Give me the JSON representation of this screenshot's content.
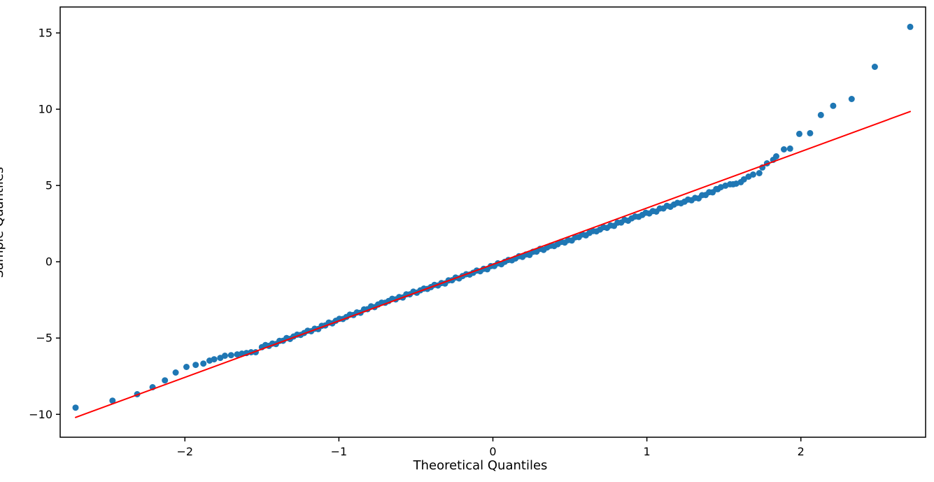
{
  "figure": {
    "xlabel": "Theoretical Quantiles",
    "ylabel": "Sample Quantiles"
  },
  "chart_data": {
    "type": "scatter",
    "title": "",
    "xlabel": "Theoretical Quantiles",
    "ylabel": "Sample Quantiles",
    "xlim": [
      -2.81,
      2.81
    ],
    "ylim": [
      -11.5,
      16.7
    ],
    "xticks": [
      -2,
      -1,
      0,
      1,
      2
    ],
    "yticks": [
      -10,
      -5,
      0,
      5,
      10,
      15
    ],
    "grid": false,
    "legend": null,
    "background_color": "#ffffff",
    "point_color": "#1f77b4",
    "point_radius": 4.5,
    "reference_line": {
      "color": "#ff0000",
      "width": 2,
      "x1": -2.71,
      "y1": -10.2,
      "x2": 2.71,
      "y2": 9.85
    },
    "outlier_points": [
      [
        -2.71,
        -9.56
      ],
      [
        -2.47,
        -9.1
      ],
      [
        -2.31,
        -8.68
      ],
      [
        -2.21,
        -8.22
      ],
      [
        -2.13,
        -7.77
      ],
      [
        -2.06,
        -7.26
      ],
      [
        -1.99,
        -6.89
      ],
      [
        -1.93,
        -6.76
      ],
      [
        -1.88,
        -6.67
      ],
      [
        -1.84,
        -6.48
      ],
      [
        -1.81,
        -6.39
      ],
      [
        -1.77,
        -6.3
      ],
      [
        -1.74,
        -6.16
      ],
      [
        -1.7,
        -6.12
      ],
      [
        -1.66,
        -6.07
      ],
      [
        -1.63,
        -6.02
      ],
      [
        -1.6,
        -5.98
      ],
      [
        -1.57,
        -5.93
      ],
      [
        -1.54,
        -5.93
      ],
      [
        1.46,
        4.76
      ],
      [
        1.48,
        4.89
      ],
      [
        1.51,
        4.99
      ],
      [
        1.54,
        5.08
      ],
      [
        1.56,
        5.08
      ],
      [
        1.58,
        5.12
      ],
      [
        1.61,
        5.22
      ],
      [
        1.63,
        5.4
      ],
      [
        1.66,
        5.58
      ],
      [
        1.69,
        5.72
      ],
      [
        1.73,
        5.81
      ],
      [
        1.75,
        6.18
      ],
      [
        1.78,
        6.45
      ],
      [
        1.82,
        6.68
      ],
      [
        1.84,
        6.91
      ],
      [
        1.89,
        7.37
      ],
      [
        1.93,
        7.42
      ],
      [
        1.99,
        8.38
      ],
      [
        2.06,
        8.43
      ],
      [
        2.13,
        9.62
      ],
      [
        2.21,
        10.22
      ],
      [
        2.33,
        10.67
      ],
      [
        2.48,
        12.78
      ],
      [
        2.71,
        15.4
      ]
    ],
    "dense_band": {
      "description": "Dense run of overlapping sample points between the tails; v = slope*t + intercept + offset(t) + jitter",
      "t_start": -1.5,
      "t_end": 1.45,
      "n": 130,
      "slope": 3.7,
      "intercept": -0.2,
      "offset_anchors": [
        [
          -1.5,
          0.15
        ],
        [
          -1.42,
          0.1
        ],
        [
          -1.3,
          0.07
        ],
        [
          -1.15,
          0.06
        ],
        [
          -1.0,
          0.09
        ],
        [
          -0.85,
          0.12
        ],
        [
          -0.7,
          0.14
        ],
        [
          -0.55,
          0.09
        ],
        [
          -0.45,
          0.04
        ],
        [
          -0.3,
          0.0
        ],
        [
          -0.15,
          -0.04
        ],
        [
          0.0,
          -0.09
        ],
        [
          0.2,
          -0.14
        ],
        [
          0.4,
          -0.2
        ],
        [
          0.6,
          -0.24
        ],
        [
          0.8,
          -0.28
        ],
        [
          1.0,
          -0.33
        ],
        [
          1.15,
          -0.4
        ],
        [
          1.3,
          -0.5
        ],
        [
          1.4,
          -0.52
        ],
        [
          1.45,
          -0.42
        ]
      ],
      "jitter": [
        0,
        0.07,
        -0.05,
        0.03,
        -0.08,
        0.05,
        -0.02,
        0.08,
        -0.06,
        0.02,
        0.06,
        -0.04
      ]
    }
  }
}
